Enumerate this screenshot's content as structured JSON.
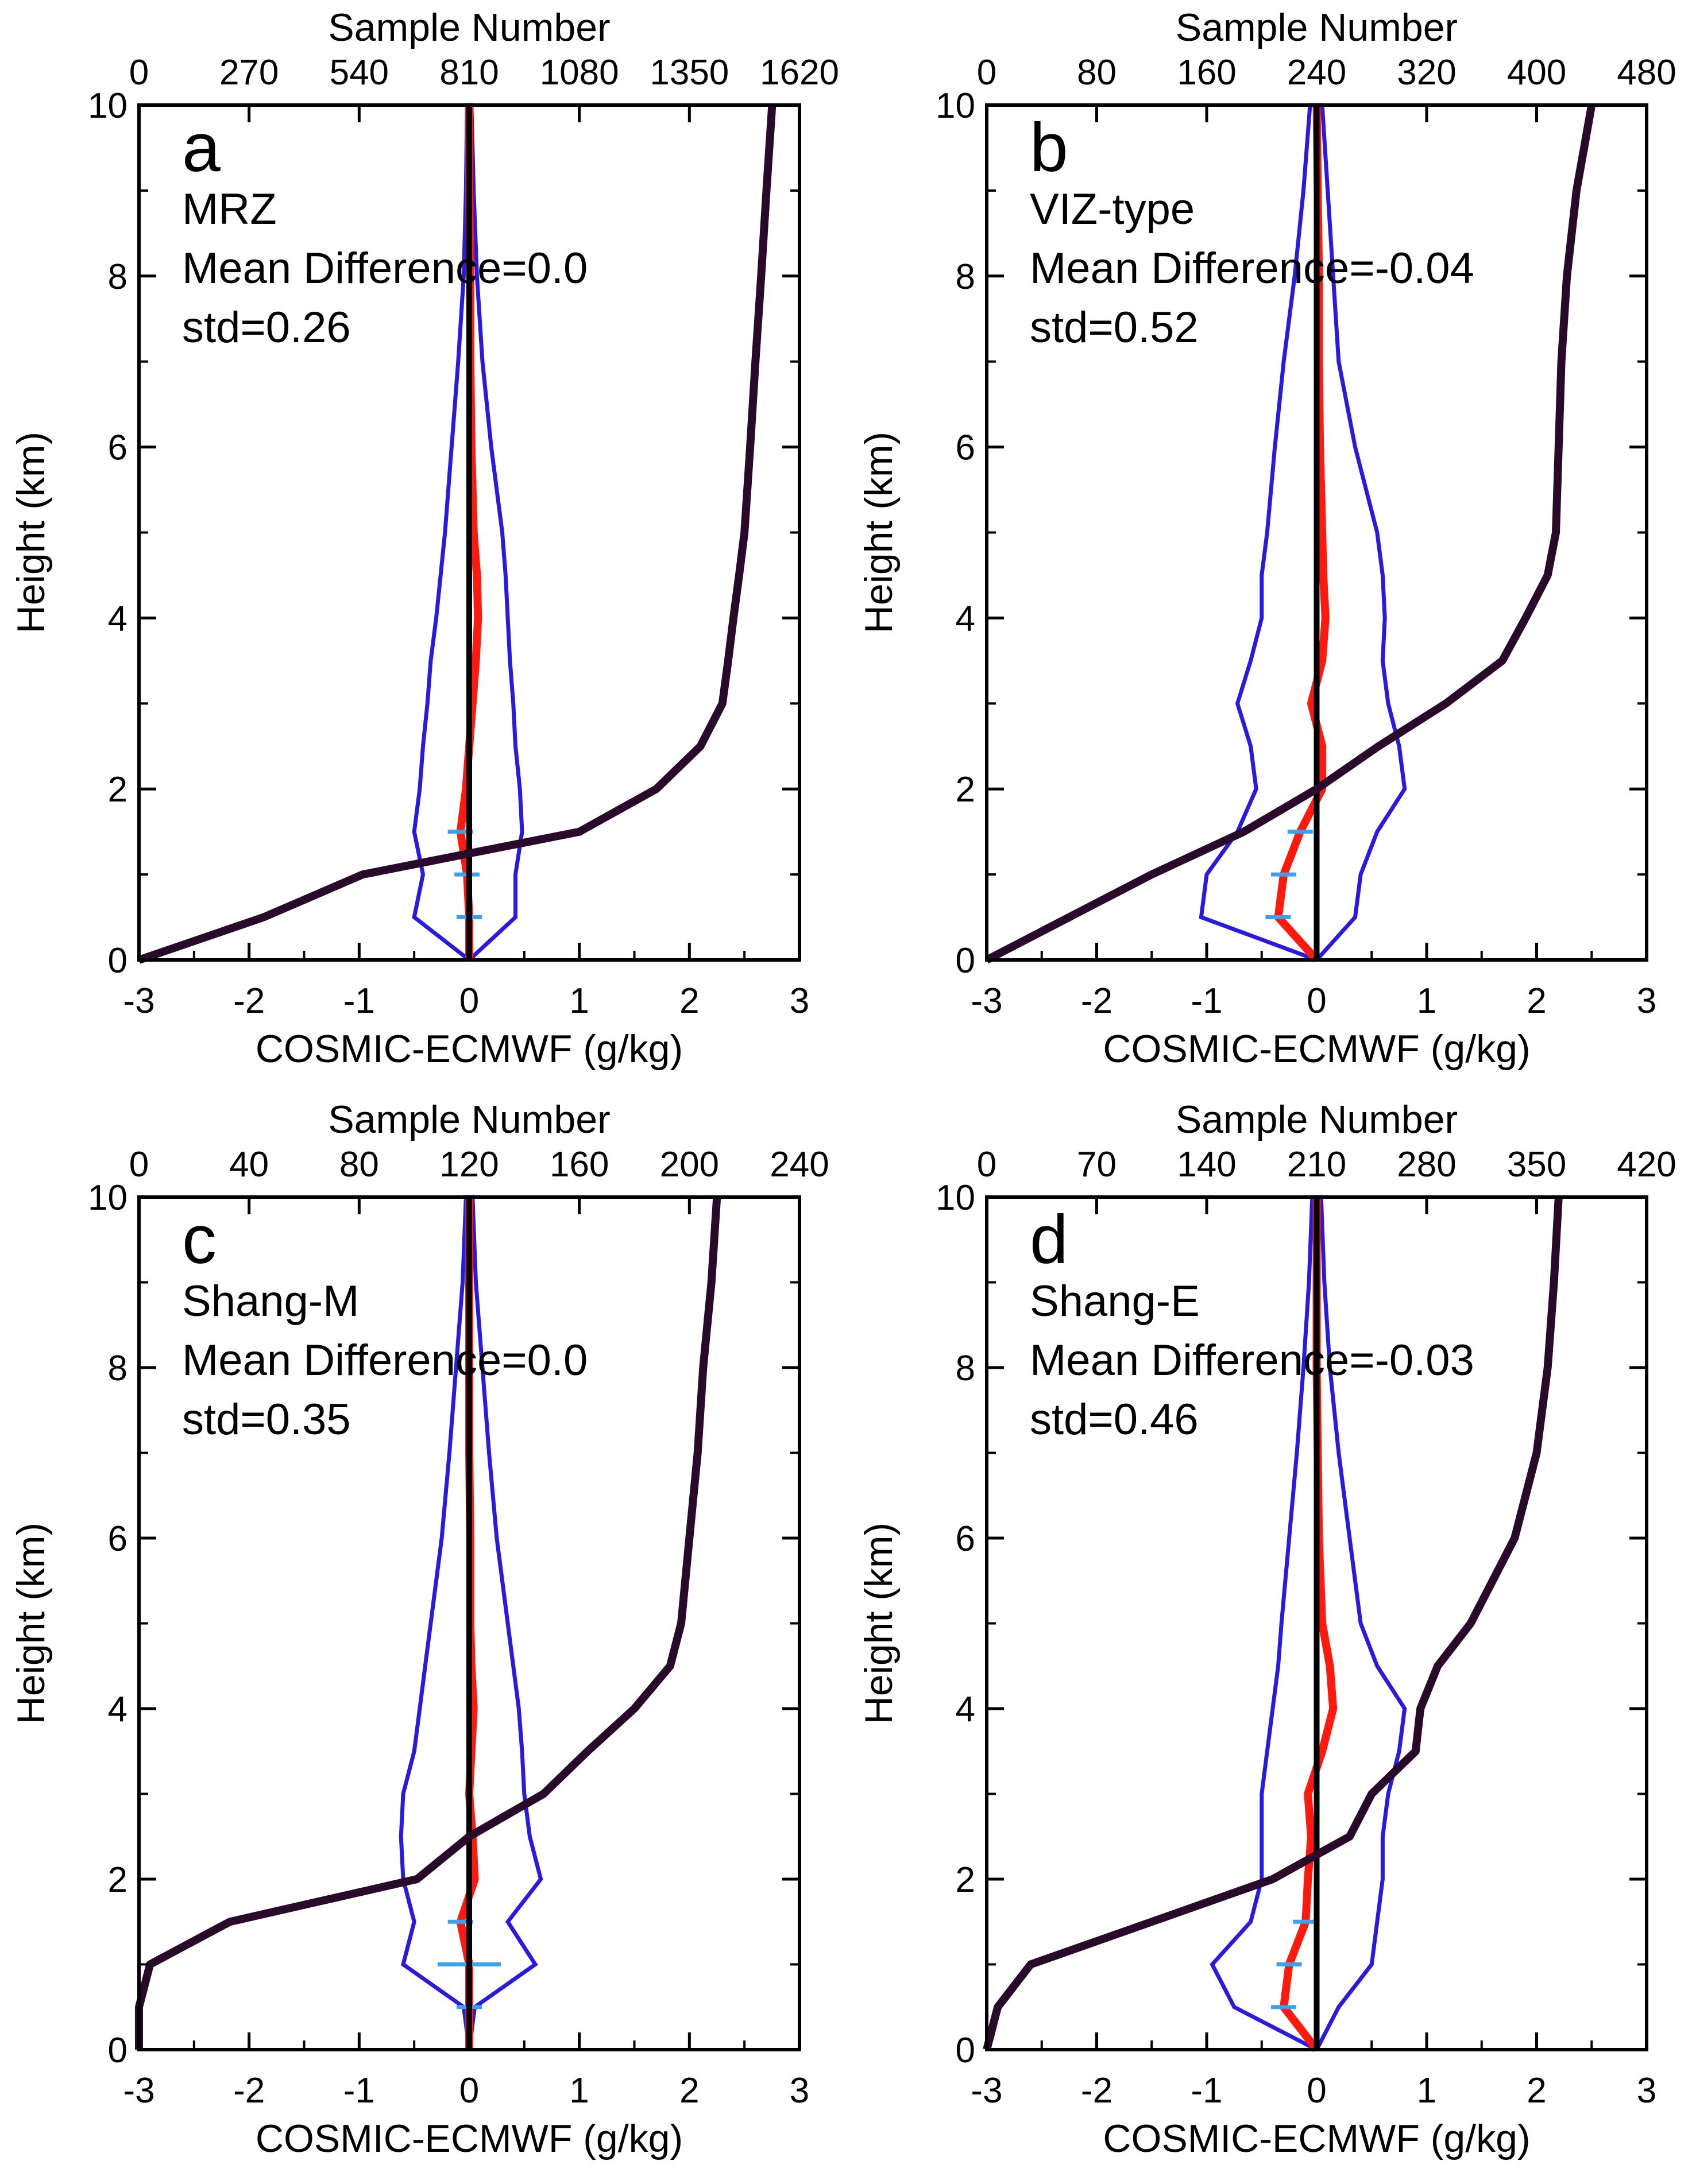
{
  "figure": {
    "colors": {
      "mean": "#ff1a0d",
      "std_bounds": "#2a1ae0",
      "sample_number": "#2a0a2a",
      "zero_line": "#000000",
      "error_bars": "#3aa0f0"
    }
  },
  "chart_data": [
    {
      "type": "line",
      "panel_letter": "a",
      "label": "MRZ",
      "mean_text": "Mean Difference=0.0",
      "std_text": "std=0.26",
      "xlabel": "COSMIC-ECMWF (g/kg)",
      "ylabel": "Height (km)",
      "top_xlabel": "Sample Number",
      "xlim": [
        -3,
        3
      ],
      "ylim": [
        0,
        10
      ],
      "top_xlim": [
        0,
        1620
      ],
      "x_ticks": [
        "-3",
        "-2",
        "-1",
        "0",
        "1",
        "2",
        "3"
      ],
      "y_ticks": [
        "0",
        "2",
        "4",
        "6",
        "8",
        "10"
      ],
      "top_ticks": [
        "0",
        "270",
        "540",
        "810",
        "1080",
        "1350",
        "1620"
      ],
      "height": [
        0,
        0.5,
        1,
        1.5,
        2,
        2.5,
        3,
        3.5,
        4,
        4.5,
        5,
        6,
        7,
        8,
        9,
        10
      ],
      "mean": [
        0,
        0,
        -0.02,
        -0.08,
        -0.03,
        0,
        0.03,
        0.06,
        0.08,
        0.07,
        0.04,
        0.02,
        0.01,
        0.01,
        0,
        0
      ],
      "lower": [
        0,
        -0.5,
        -0.42,
        -0.5,
        -0.45,
        -0.42,
        -0.38,
        -0.35,
        -0.3,
        -0.26,
        -0.22,
        -0.16,
        -0.1,
        -0.05,
        -0.03,
        -0.02
      ],
      "upper": [
        0,
        0.42,
        0.42,
        0.48,
        0.46,
        0.42,
        0.4,
        0.37,
        0.35,
        0.33,
        0.3,
        0.2,
        0.12,
        0.07,
        0.04,
        0.02
      ],
      "sample_number": [
        0,
        306,
        549,
        1080,
        1269,
        1377,
        1431,
        1445,
        1458,
        1472,
        1485,
        1499,
        1512,
        1526,
        1539,
        1553
      ]
    },
    {
      "type": "line",
      "panel_letter": "b",
      "label": "VIZ-type",
      "mean_text": "Mean Difference=-0.04",
      "std_text": "std=0.52",
      "xlabel": "COSMIC-ECMWF (g/kg)",
      "ylabel": "Height (km)",
      "top_xlabel": "Sample Number",
      "xlim": [
        -3,
        3
      ],
      "ylim": [
        0,
        10
      ],
      "top_xlim": [
        0,
        480
      ],
      "x_ticks": [
        "-3",
        "-2",
        "-1",
        "0",
        "1",
        "2",
        "3"
      ],
      "y_ticks": [
        "0",
        "2",
        "4",
        "6",
        "8",
        "10"
      ],
      "top_ticks": [
        "0",
        "80",
        "160",
        "240",
        "320",
        "400",
        "480"
      ],
      "height": [
        0,
        0.5,
        1,
        1.5,
        2,
        2.5,
        3,
        3.5,
        4,
        4.5,
        5,
        6,
        7,
        8,
        9,
        10
      ],
      "mean": [
        0,
        -0.35,
        -0.3,
        -0.15,
        0.05,
        0.05,
        -0.05,
        0.05,
        0.08,
        0.06,
        0.05,
        0.03,
        0.02,
        0.02,
        0.01,
        0
      ],
      "lower": [
        0,
        -1.05,
        -1.0,
        -0.72,
        -0.55,
        -0.6,
        -0.72,
        -0.6,
        -0.5,
        -0.5,
        -0.45,
        -0.38,
        -0.3,
        -0.2,
        -0.12,
        -0.06
      ],
      "upper": [
        0,
        0.35,
        0.4,
        0.55,
        0.8,
        0.75,
        0.65,
        0.6,
        0.62,
        0.6,
        0.55,
        0.35,
        0.2,
        0.15,
        0.1,
        0.05
      ],
      "sample_number": [
        0,
        60,
        120,
        187,
        240,
        285,
        334,
        375,
        392,
        408,
        414,
        416,
        418,
        422,
        429,
        440
      ]
    },
    {
      "type": "line",
      "panel_letter": "c",
      "label": "Shang-M",
      "mean_text": "Mean Difference=0.0",
      "std_text": "std=0.35",
      "xlabel": "COSMIC-ECMWF (g/kg)",
      "ylabel": "Height (km)",
      "top_xlabel": "Sample Number",
      "xlim": [
        -3,
        3
      ],
      "ylim": [
        0,
        10
      ],
      "top_xlim": [
        0,
        240
      ],
      "x_ticks": [
        "-3",
        "-2",
        "-1",
        "0",
        "1",
        "2",
        "3"
      ],
      "y_ticks": [
        "0",
        "2",
        "4",
        "6",
        "8",
        "10"
      ],
      "top_ticks": [
        "0",
        "40",
        "80",
        "120",
        "160",
        "200",
        "240"
      ],
      "height": [
        0,
        0.5,
        1,
        1.5,
        2,
        2.5,
        3,
        3.5,
        4,
        4.5,
        5,
        6,
        7,
        8,
        9,
        10
      ],
      "mean": [
        0,
        0,
        0,
        -0.08,
        0.05,
        0.03,
        0,
        0.02,
        0.04,
        0.02,
        0.01,
        0.01,
        0,
        0,
        0,
        0
      ],
      "lower": [
        0,
        -0.05,
        -0.6,
        -0.5,
        -0.6,
        -0.62,
        -0.6,
        -0.5,
        -0.45,
        -0.4,
        -0.35,
        -0.25,
        -0.18,
        -0.12,
        -0.06,
        -0.03
      ],
      "upper": [
        0,
        0.05,
        0.6,
        0.35,
        0.65,
        0.55,
        0.5,
        0.48,
        0.45,
        0.4,
        0.35,
        0.25,
        0.18,
        0.12,
        0.06,
        0.03
      ],
      "sample_number": [
        0,
        0,
        4,
        33,
        101,
        120,
        147,
        163,
        180,
        193,
        197,
        200,
        203,
        205,
        208,
        210
      ]
    },
    {
      "type": "line",
      "panel_letter": "d",
      "label": "Shang-E",
      "mean_text": "Mean Difference=-0.03",
      "std_text": "std=0.46",
      "xlabel": "COSMIC-ECMWF (g/kg)",
      "ylabel": "Height (km)",
      "top_xlabel": "Sample Number",
      "xlim": [
        -3,
        3
      ],
      "ylim": [
        0,
        10
      ],
      "top_xlim": [
        0,
        420
      ],
      "x_ticks": [
        "-3",
        "-2",
        "-1",
        "0",
        "1",
        "2",
        "3"
      ],
      "y_ticks": [
        "0",
        "2",
        "4",
        "6",
        "8",
        "10"
      ],
      "top_ticks": [
        "0",
        "70",
        "140",
        "210",
        "280",
        "350",
        "420"
      ],
      "height": [
        0,
        0.5,
        1,
        1.5,
        2,
        2.5,
        3,
        3.5,
        4,
        4.5,
        5,
        6,
        7,
        8,
        9,
        10
      ],
      "mean": [
        0,
        -0.3,
        -0.25,
        -0.1,
        -0.08,
        -0.05,
        -0.08,
        0.05,
        0.15,
        0.12,
        0.05,
        0.02,
        0.01,
        0,
        0,
        0
      ],
      "lower": [
        0,
        -0.75,
        -0.95,
        -0.6,
        -0.5,
        -0.5,
        -0.5,
        -0.45,
        -0.4,
        -0.35,
        -0.32,
        -0.25,
        -0.18,
        -0.12,
        -0.07,
        -0.04
      ],
      "upper": [
        0,
        0.2,
        0.5,
        0.55,
        0.6,
        0.6,
        0.65,
        0.75,
        0.8,
        0.55,
        0.4,
        0.3,
        0.2,
        0.12,
        0.07,
        0.04
      ],
      "sample_number": [
        0,
        7,
        28,
        105,
        182,
        231,
        245,
        273,
        276,
        287,
        308,
        336,
        350,
        357,
        361,
        364
      ]
    }
  ]
}
